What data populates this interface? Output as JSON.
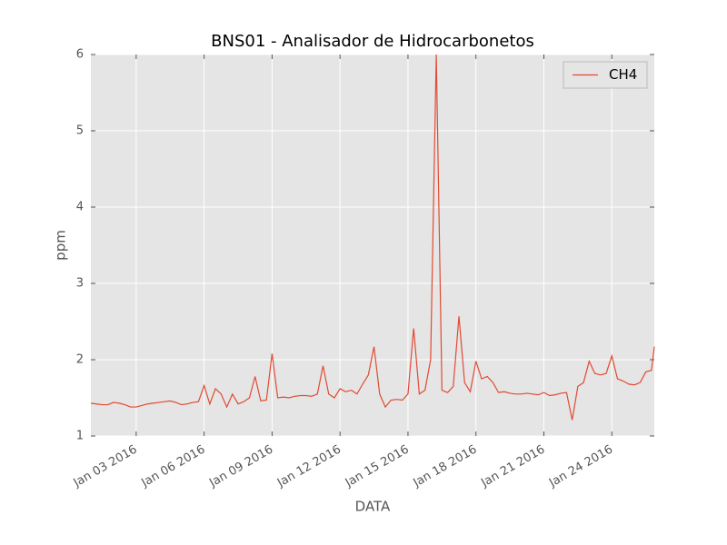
{
  "chart_data": {
    "type": "line",
    "title": "BNS01 - Analisador de Hidrocarbonetos",
    "xlabel": "DATA",
    "ylabel": "ppm",
    "x": [
      "2016-01-01T00:00",
      "2016-01-01T06:00",
      "2016-01-01T12:00",
      "2016-01-01T18:00",
      "2016-01-02T00:00",
      "2016-01-02T06:00",
      "2016-01-02T12:00",
      "2016-01-02T18:00",
      "2016-01-03T00:00",
      "2016-01-03T06:00",
      "2016-01-03T12:00",
      "2016-01-03T18:00",
      "2016-01-04T00:00",
      "2016-01-04T06:00",
      "2016-01-04T12:00",
      "2016-01-04T18:00",
      "2016-01-05T00:00",
      "2016-01-05T06:00",
      "2016-01-05T12:00",
      "2016-01-05T18:00",
      "2016-01-06T00:00",
      "2016-01-06T06:00",
      "2016-01-06T12:00",
      "2016-01-06T18:00",
      "2016-01-07T00:00",
      "2016-01-07T06:00",
      "2016-01-07T12:00",
      "2016-01-07T18:00",
      "2016-01-08T00:00",
      "2016-01-08T06:00",
      "2016-01-08T12:00",
      "2016-01-08T18:00",
      "2016-01-09T00:00",
      "2016-01-09T06:00",
      "2016-01-09T12:00",
      "2016-01-09T18:00",
      "2016-01-10T00:00",
      "2016-01-10T06:00",
      "2016-01-10T12:00",
      "2016-01-10T18:00",
      "2016-01-11T00:00",
      "2016-01-11T06:00",
      "2016-01-11T12:00",
      "2016-01-11T18:00",
      "2016-01-12T00:00",
      "2016-01-12T06:00",
      "2016-01-12T12:00",
      "2016-01-12T18:00",
      "2016-01-13T00:00",
      "2016-01-13T06:00",
      "2016-01-13T12:00",
      "2016-01-13T18:00",
      "2016-01-14T00:00",
      "2016-01-14T06:00",
      "2016-01-14T12:00",
      "2016-01-14T18:00",
      "2016-01-15T00:00",
      "2016-01-15T06:00",
      "2016-01-15T12:00",
      "2016-01-15T18:00",
      "2016-01-16T00:00",
      "2016-01-16T06:00",
      "2016-01-16T12:00",
      "2016-01-16T18:00",
      "2016-01-17T00:00",
      "2016-01-17T06:00",
      "2016-01-17T12:00",
      "2016-01-17T18:00",
      "2016-01-18T00:00",
      "2016-01-18T06:00",
      "2016-01-18T12:00",
      "2016-01-18T18:00",
      "2016-01-19T00:00",
      "2016-01-19T06:00",
      "2016-01-19T12:00",
      "2016-01-19T18:00",
      "2016-01-20T00:00",
      "2016-01-20T06:00",
      "2016-01-20T12:00",
      "2016-01-20T18:00",
      "2016-01-21T00:00",
      "2016-01-21T06:00",
      "2016-01-21T12:00",
      "2016-01-21T18:00",
      "2016-01-22T00:00",
      "2016-01-22T06:00",
      "2016-01-22T12:00",
      "2016-01-22T18:00",
      "2016-01-23T00:00",
      "2016-01-23T06:00",
      "2016-01-23T12:00",
      "2016-01-23T18:00",
      "2016-01-24T00:00",
      "2016-01-24T06:00",
      "2016-01-24T12:00",
      "2016-01-24T18:00",
      "2016-01-25T00:00",
      "2016-01-25T06:00",
      "2016-01-25T12:00",
      "2016-01-25T18:00",
      "2016-01-25T21:00"
    ],
    "series": [
      {
        "name": "CH4",
        "color": "#e24a33",
        "values": [
          1.43,
          1.42,
          1.41,
          1.41,
          1.44,
          1.43,
          1.41,
          1.38,
          1.38,
          1.4,
          1.42,
          1.43,
          1.44,
          1.45,
          1.46,
          1.44,
          1.41,
          1.42,
          1.44,
          1.45,
          1.66,
          1.42,
          1.62,
          1.55,
          1.38,
          1.55,
          1.42,
          1.45,
          1.5,
          1.78,
          1.46,
          1.47,
          2.08,
          1.5,
          1.51,
          1.5,
          1.52,
          1.53,
          1.53,
          1.52,
          1.55,
          1.92,
          1.55,
          1.5,
          1.62,
          1.58,
          1.6,
          1.55,
          1.68,
          1.8,
          2.17,
          1.55,
          1.38,
          1.47,
          1.48,
          1.47,
          1.55,
          2.41,
          1.55,
          1.6,
          2.0,
          6.0,
          1.6,
          1.57,
          1.65,
          2.57,
          1.7,
          1.58,
          1.98,
          1.75,
          1.78,
          1.7,
          1.57,
          1.58,
          1.56,
          1.55,
          1.55,
          1.56,
          1.55,
          1.54,
          1.57,
          1.53,
          1.54,
          1.56,
          1.57,
          1.21,
          1.65,
          1.7,
          1.98,
          1.82,
          1.8,
          1.82,
          2.05,
          1.75,
          1.72,
          1.68,
          1.67,
          1.7,
          1.84,
          1.86,
          2.17
        ]
      }
    ],
    "xlim": [
      "2016-01-01T00:00",
      "2016-01-25T21:00"
    ],
    "xticks": [
      {
        "value": "2016-01-03",
        "label": "Jan 03 2016"
      },
      {
        "value": "2016-01-06",
        "label": "Jan 06 2016"
      },
      {
        "value": "2016-01-09",
        "label": "Jan 09 2016"
      },
      {
        "value": "2016-01-12",
        "label": "Jan 12 2016"
      },
      {
        "value": "2016-01-15",
        "label": "Jan 15 2016"
      },
      {
        "value": "2016-01-18",
        "label": "Jan 18 2016"
      },
      {
        "value": "2016-01-21",
        "label": "Jan 21 2016"
      },
      {
        "value": "2016-01-24",
        "label": "Jan 24 2016"
      }
    ],
    "ylim": [
      1,
      6
    ],
    "yticks": [
      1,
      2,
      3,
      4,
      5,
      6
    ],
    "grid": true,
    "legend": "upper right"
  }
}
